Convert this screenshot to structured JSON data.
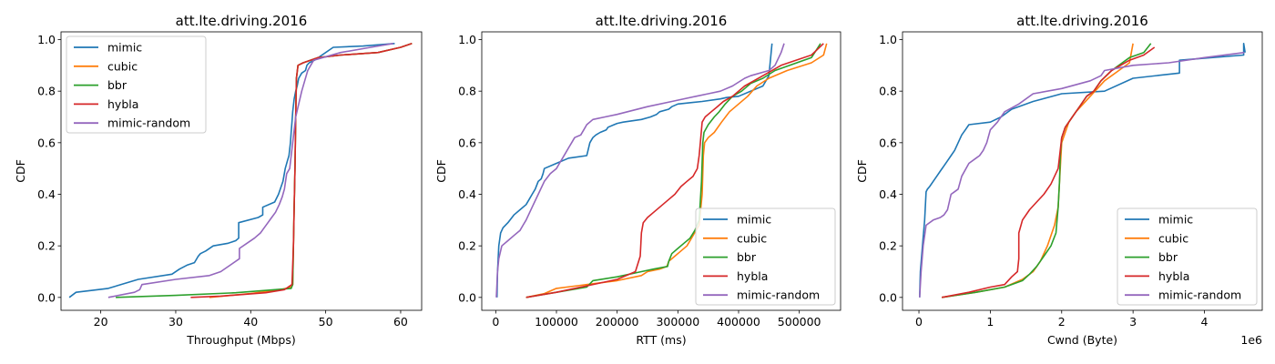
{
  "colors": {
    "mimic": "#1f77b4",
    "cubic": "#ff7f0e",
    "bbr": "#2ca02c",
    "hybla": "#d62728",
    "mimic-random": "#9467bd"
  },
  "chart_data": [
    {
      "type": "line",
      "title": "att.lte.driving.2016",
      "xlabel": "Throughput (Mbps)",
      "ylabel": "CDF",
      "xlim": [
        14.7,
        62.8
      ],
      "ylim": [
        -0.05,
        1.03
      ],
      "xticks": [
        20,
        30,
        40,
        50,
        60
      ],
      "xtick_labels": [
        "20",
        "30",
        "40",
        "50",
        "60"
      ],
      "yticks": [
        0.0,
        0.2,
        0.4,
        0.6,
        0.8,
        1.0
      ],
      "ytick_labels": [
        "0.0",
        "0.2",
        "0.4",
        "0.6",
        "0.8",
        "1.0"
      ],
      "x_offset_label": "",
      "legend_position": "upper-left",
      "grid": false,
      "series": [
        {
          "name": "mimic",
          "x": [
            15.8,
            16.7,
            21,
            25,
            29.5,
            30.5,
            31.5,
            32.5,
            33,
            33.3,
            34,
            35,
            37,
            38,
            38.4,
            38.4,
            41,
            41.6,
            41.6,
            43.2,
            43.7,
            44.3,
            44.6,
            44.9,
            45.1,
            45.3,
            45.4,
            45.5,
            45.6,
            45.8,
            46,
            46.2,
            46.4,
            46.8,
            47.3,
            47.5,
            47.8,
            48.5,
            51,
            55,
            59.2
          ],
          "y": [
            0,
            0.02,
            0.035,
            0.07,
            0.09,
            0.11,
            0.125,
            0.135,
            0.16,
            0.17,
            0.18,
            0.2,
            0.21,
            0.22,
            0.23,
            0.29,
            0.31,
            0.32,
            0.35,
            0.37,
            0.4,
            0.45,
            0.5,
            0.53,
            0.55,
            0.6,
            0.64,
            0.68,
            0.72,
            0.77,
            0.8,
            0.82,
            0.85,
            0.87,
            0.88,
            0.9,
            0.91,
            0.92,
            0.97,
            0.975,
            0.985
          ]
        },
        {
          "name": "cubic",
          "x": [
            34.5,
            40,
            44,
            45.4,
            45.6,
            45.7,
            45.8,
            45.9,
            46,
            46.1,
            46.3,
            47,
            49,
            52,
            57,
            60,
            61.5
          ],
          "y": [
            0,
            0.015,
            0.03,
            0.04,
            0.05,
            0.2,
            0.35,
            0.5,
            0.7,
            0.85,
            0.9,
            0.91,
            0.93,
            0.94,
            0.95,
            0.97,
            0.985
          ]
        },
        {
          "name": "bbr",
          "x": [
            22,
            30,
            38,
            45.4,
            45.6,
            45.7,
            45.8,
            45.9,
            46,
            46.1,
            46.3,
            47,
            49,
            52,
            57,
            60,
            61.5
          ],
          "y": [
            0,
            0.008,
            0.018,
            0.035,
            0.05,
            0.2,
            0.35,
            0.5,
            0.7,
            0.85,
            0.9,
            0.91,
            0.93,
            0.94,
            0.95,
            0.97,
            0.985
          ]
        },
        {
          "name": "hybla",
          "x": [
            32,
            36,
            42,
            44.5,
            45.5,
            45.7,
            45.8,
            45.9,
            46,
            46.1,
            46.3,
            47,
            49,
            52,
            57,
            60,
            61.5
          ],
          "y": [
            0,
            0.005,
            0.018,
            0.03,
            0.05,
            0.2,
            0.35,
            0.5,
            0.7,
            0.85,
            0.9,
            0.91,
            0.93,
            0.94,
            0.95,
            0.97,
            0.985
          ]
        },
        {
          "name": "mimic-random",
          "x": [
            21,
            24.5,
            25.2,
            25.5,
            30,
            34.5,
            36,
            37.5,
            38.5,
            38.5,
            39.5,
            40.5,
            41.3,
            41.8,
            42.3,
            42.8,
            43.3,
            43.8,
            44.2,
            44.5,
            44.8,
            45.2,
            45.6,
            46,
            46.4,
            46.8,
            47.2,
            47.6,
            48.4,
            52,
            56,
            59
          ],
          "y": [
            0,
            0.02,
            0.03,
            0.05,
            0.07,
            0.085,
            0.1,
            0.13,
            0.15,
            0.19,
            0.21,
            0.23,
            0.25,
            0.27,
            0.29,
            0.31,
            0.33,
            0.36,
            0.39,
            0.42,
            0.48,
            0.5,
            0.6,
            0.7,
            0.75,
            0.8,
            0.84,
            0.88,
            0.92,
            0.95,
            0.97,
            0.985
          ]
        }
      ]
    },
    {
      "type": "line",
      "title": "att.lte.driving.2016",
      "xlabel": "RTT (ms)",
      "ylabel": "CDF",
      "xlim": [
        -23000,
        568000
      ],
      "ylim": [
        -0.05,
        1.03
      ],
      "xticks": [
        0,
        100000,
        200000,
        300000,
        400000,
        500000
      ],
      "xtick_labels": [
        "0",
        "100000",
        "200000",
        "300000",
        "400000",
        "500000"
      ],
      "yticks": [
        0.0,
        0.2,
        0.4,
        0.6,
        0.8,
        1.0
      ],
      "ytick_labels": [
        "0.0",
        "0.2",
        "0.4",
        "0.6",
        "0.8",
        "1.0"
      ],
      "x_offset_label": "",
      "legend_position": "lower-right",
      "grid": false,
      "series": [
        {
          "name": "mimic",
          "x": [
            2000,
            3000,
            5000,
            8000,
            12000,
            20000,
            30000,
            40000,
            50000,
            55000,
            60000,
            65000,
            70000,
            75000,
            78000,
            80000,
            100000,
            120000,
            150000,
            155000,
            160000,
            165000,
            172000,
            182000,
            185000,
            195000,
            200000,
            210000,
            240000,
            255000,
            265000,
            270000,
            285000,
            290000,
            300000,
            340000,
            370000,
            380000,
            400000,
            440000,
            450000,
            455000
          ],
          "y": [
            0,
            0.1,
            0.2,
            0.25,
            0.27,
            0.29,
            0.32,
            0.34,
            0.36,
            0.38,
            0.4,
            0.42,
            0.45,
            0.46,
            0.48,
            0.5,
            0.52,
            0.54,
            0.55,
            0.6,
            0.62,
            0.63,
            0.64,
            0.65,
            0.66,
            0.67,
            0.675,
            0.68,
            0.69,
            0.7,
            0.71,
            0.72,
            0.73,
            0.74,
            0.75,
            0.76,
            0.77,
            0.775,
            0.78,
            0.82,
            0.86,
            0.985
          ]
        },
        {
          "name": "cubic",
          "x": [
            50000,
            80000,
            100000,
            150000,
            200000,
            240000,
            250000,
            270000,
            282000,
            285000,
            295000,
            305000,
            315000,
            325000,
            335000,
            340000,
            342000,
            344000,
            350000,
            360000,
            372000,
            385000,
            400000,
            415000,
            430000,
            450000,
            480000,
            520000,
            540000,
            545000
          ],
          "y": [
            0,
            0.015,
            0.035,
            0.05,
            0.065,
            0.085,
            0.1,
            0.11,
            0.12,
            0.14,
            0.16,
            0.18,
            0.2,
            0.24,
            0.28,
            0.4,
            0.55,
            0.6,
            0.62,
            0.64,
            0.68,
            0.72,
            0.75,
            0.78,
            0.82,
            0.85,
            0.88,
            0.91,
            0.94,
            0.985
          ]
        },
        {
          "name": "bbr",
          "x": [
            50000,
            100000,
            150000,
            160000,
            200000,
            240000,
            260000,
            283000,
            285000,
            290000,
            300000,
            310000,
            320000,
            328000,
            335000,
            339000,
            341000,
            343000,
            350000,
            360000,
            368000,
            378000,
            390000,
            405000,
            420000,
            440000,
            460000,
            520000,
            535000
          ],
          "y": [
            0,
            0.02,
            0.04,
            0.065,
            0.08,
            0.1,
            0.11,
            0.12,
            0.14,
            0.17,
            0.19,
            0.21,
            0.23,
            0.26,
            0.3,
            0.45,
            0.6,
            0.64,
            0.67,
            0.7,
            0.72,
            0.75,
            0.78,
            0.8,
            0.83,
            0.85,
            0.88,
            0.93,
            0.985
          ]
        },
        {
          "name": "hybla",
          "x": [
            50000,
            100000,
            150000,
            200000,
            230000,
            238000,
            240000,
            243000,
            250000,
            260000,
            275000,
            285000,
            295000,
            305000,
            315000,
            325000,
            332000,
            335000,
            337000,
            340000,
            345000,
            355000,
            365000,
            375000,
            390000,
            410000,
            440000,
            470000,
            520000,
            540000
          ],
          "y": [
            0,
            0.02,
            0.045,
            0.07,
            0.1,
            0.16,
            0.25,
            0.29,
            0.31,
            0.33,
            0.36,
            0.38,
            0.4,
            0.43,
            0.45,
            0.47,
            0.5,
            0.55,
            0.6,
            0.68,
            0.7,
            0.72,
            0.74,
            0.76,
            0.78,
            0.82,
            0.86,
            0.9,
            0.94,
            0.985
          ]
        },
        {
          "name": "mimic-random",
          "x": [
            1000,
            3000,
            5000,
            10000,
            20000,
            30000,
            40000,
            45000,
            50000,
            60000,
            70000,
            80000,
            90000,
            100000,
            105000,
            110000,
            115000,
            120000,
            125000,
            130000,
            140000,
            145000,
            150000,
            160000,
            180000,
            200000,
            250000,
            290000,
            330000,
            350000,
            370000,
            390000,
            410000,
            420000,
            450000,
            460000,
            470000,
            475000
          ],
          "y": [
            0,
            0.1,
            0.15,
            0.2,
            0.22,
            0.24,
            0.26,
            0.28,
            0.3,
            0.35,
            0.4,
            0.45,
            0.48,
            0.5,
            0.52,
            0.54,
            0.56,
            0.58,
            0.6,
            0.62,
            0.63,
            0.65,
            0.67,
            0.69,
            0.7,
            0.71,
            0.74,
            0.76,
            0.78,
            0.79,
            0.8,
            0.82,
            0.85,
            0.86,
            0.88,
            0.9,
            0.95,
            0.985
          ]
        }
      ]
    },
    {
      "type": "line",
      "title": "att.lte.driving.2016",
      "xlabel": "Cwnd (Byte)",
      "ylabel": "CDF",
      "xlim": [
        -230000,
        4810000
      ],
      "ylim": [
        -0.05,
        1.03
      ],
      "xticks": [
        0,
        1000000,
        2000000,
        3000000,
        4000000
      ],
      "xtick_labels": [
        "0",
        "1",
        "2",
        "3",
        "4"
      ],
      "yticks": [
        0.0,
        0.2,
        0.4,
        0.6,
        0.8,
        1.0
      ],
      "ytick_labels": [
        "0.0",
        "0.2",
        "0.4",
        "0.6",
        "0.8",
        "1.0"
      ],
      "x_offset_label": "1e6",
      "legend_position": "lower-right",
      "grid": false,
      "series": [
        {
          "name": "mimic",
          "x": [
            10000,
            20000,
            50000,
            80000,
            100000,
            120000,
            150000,
            200000,
            250000,
            300000,
            350000,
            400000,
            450000,
            500000,
            550000,
            600000,
            650000,
            700000,
            1000000,
            1150000,
            1300000,
            1600000,
            2000000,
            2600000,
            3000000,
            3650000,
            3650000,
            4100000,
            4550000,
            4550000,
            4570000
          ],
          "y": [
            0,
            0.1,
            0.2,
            0.3,
            0.41,
            0.42,
            0.43,
            0.45,
            0.47,
            0.49,
            0.51,
            0.53,
            0.55,
            0.57,
            0.6,
            0.63,
            0.65,
            0.67,
            0.68,
            0.7,
            0.73,
            0.76,
            0.79,
            0.8,
            0.85,
            0.87,
            0.92,
            0.93,
            0.94,
            0.985,
            0.95
          ]
        },
        {
          "name": "cubic",
          "x": [
            320000,
            800000,
            1200000,
            1450000,
            1600000,
            1700000,
            1800000,
            1900000,
            1950000,
            1970000,
            1990000,
            2000000,
            2050000,
            2100000,
            2200000,
            2300000,
            2400000,
            2500000,
            2600000,
            2800000,
            2950000,
            3000000
          ],
          "y": [
            0,
            0.02,
            0.04,
            0.07,
            0.1,
            0.14,
            0.2,
            0.28,
            0.35,
            0.45,
            0.55,
            0.6,
            0.64,
            0.68,
            0.72,
            0.75,
            0.78,
            0.81,
            0.84,
            0.88,
            0.91,
            0.985
          ]
        },
        {
          "name": "bbr",
          "x": [
            320000,
            800000,
            1200000,
            1450000,
            1550000,
            1650000,
            1750000,
            1850000,
            1920000,
            1950000,
            1970000,
            1980000,
            2000000,
            2050000,
            2150000,
            2250000,
            2350000,
            2450000,
            2550000,
            2700000,
            2950000,
            3150000,
            3250000
          ],
          "y": [
            0,
            0.02,
            0.04,
            0.065,
            0.09,
            0.12,
            0.16,
            0.2,
            0.25,
            0.35,
            0.45,
            0.55,
            0.62,
            0.66,
            0.7,
            0.74,
            0.78,
            0.8,
            0.84,
            0.88,
            0.93,
            0.95,
            0.985
          ]
        },
        {
          "name": "hybla",
          "x": [
            320000,
            700000,
            1000000,
            1200000,
            1300000,
            1380000,
            1400000,
            1400000,
            1450000,
            1550000,
            1650000,
            1750000,
            1850000,
            1950000,
            2000000,
            2050000,
            2150000,
            2250000,
            2350000,
            2450000,
            2550000,
            2700000,
            2950000,
            3150000,
            3300000
          ],
          "y": [
            0,
            0.02,
            0.04,
            0.05,
            0.08,
            0.1,
            0.15,
            0.25,
            0.3,
            0.34,
            0.37,
            0.4,
            0.44,
            0.5,
            0.62,
            0.66,
            0.7,
            0.74,
            0.78,
            0.8,
            0.84,
            0.88,
            0.92,
            0.94,
            0.97
          ]
        },
        {
          "name": "mimic-random",
          "x": [
            10000,
            30000,
            60000,
            100000,
            200000,
            300000,
            350000,
            400000,
            450000,
            500000,
            550000,
            600000,
            700000,
            800000,
            850000,
            900000,
            950000,
            1000000,
            1100000,
            1200000,
            1400000,
            1600000,
            2000000,
            2400000,
            2550000,
            2600000,
            3000000,
            3500000,
            4000000,
            4560000
          ],
          "y": [
            0,
            0.1,
            0.2,
            0.28,
            0.3,
            0.31,
            0.32,
            0.34,
            0.4,
            0.41,
            0.42,
            0.47,
            0.52,
            0.54,
            0.55,
            0.57,
            0.6,
            0.65,
            0.68,
            0.72,
            0.75,
            0.79,
            0.81,
            0.84,
            0.86,
            0.88,
            0.9,
            0.91,
            0.93,
            0.95
          ]
        }
      ]
    }
  ]
}
